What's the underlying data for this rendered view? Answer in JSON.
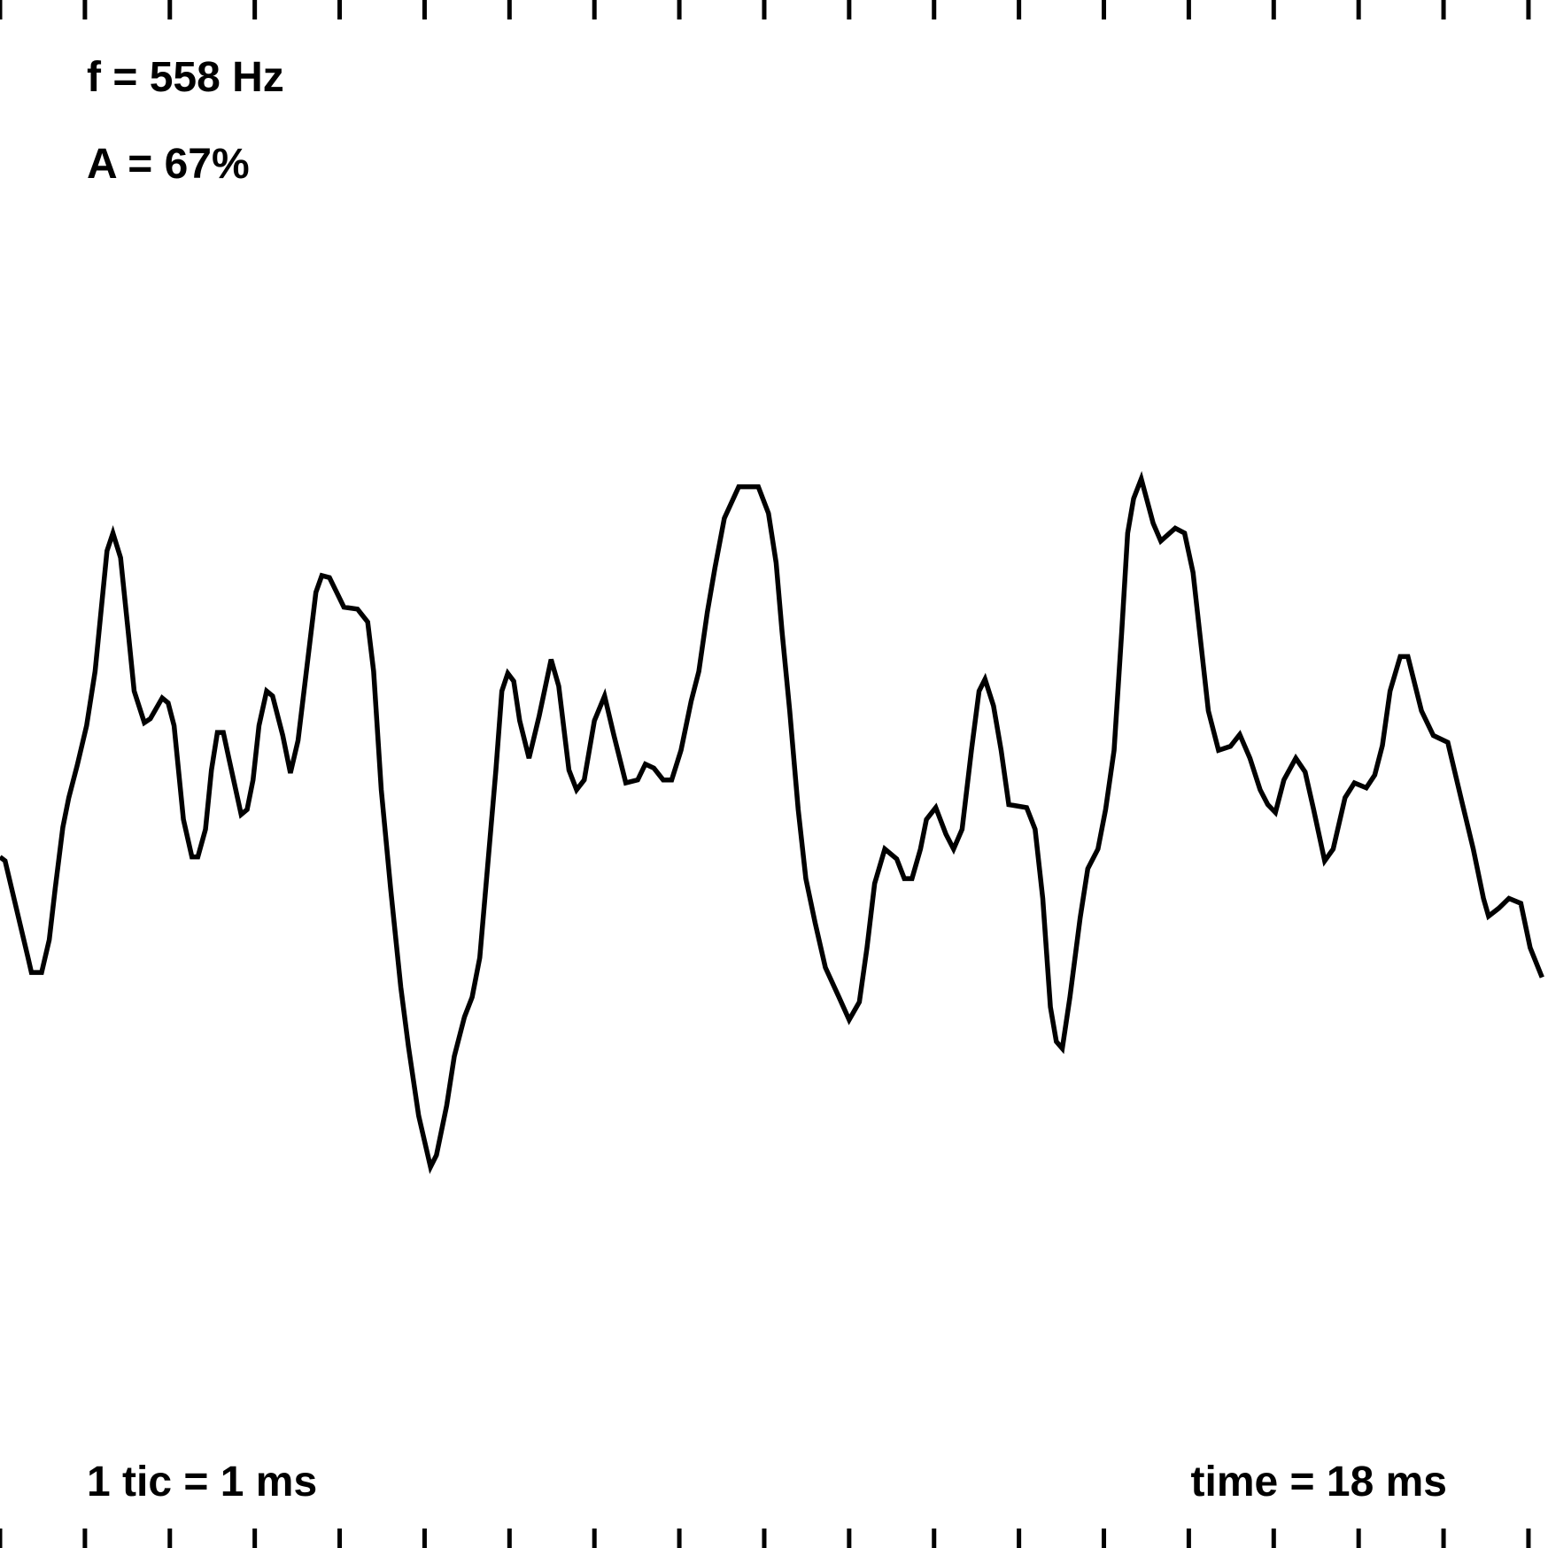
{
  "chart_data": {
    "type": "line",
    "annotations": [
      "f = 558 Hz",
      "A = 67%",
      "1 tic = 1 ms",
      "time = 18 ms"
    ],
    "color": "#000000",
    "xlim": [
      0,
      18.23
    ],
    "ylim": [
      -784,
      784
    ],
    "xticks": [
      0,
      1,
      2,
      3,
      4,
      5,
      6,
      7,
      8,
      9,
      10,
      11,
      12,
      13,
      14,
      15,
      16,
      17,
      18
    ],
    "x": [
      0,
      0.06,
      0.33,
      0.37,
      0.49,
      0.58,
      0.65,
      0.74,
      0.81,
      0.91,
      1.02,
      1.12,
      1.26,
      1.33,
      1.42,
      1.51,
      1.58,
      1.7,
      1.77,
      1.91,
      1.98,
      2.05,
      2.16,
      2.26,
      2.33,
      2.42,
      2.49,
      2.56,
      2.63,
      2.7,
      2.84,
      2.91,
      2.98,
      3.05,
      3.14,
      3.21,
      3.33,
      3.42,
      3.51,
      3.65,
      3.72,
      3.79,
      3.88,
      4.05,
      4.21,
      4.33,
      4.4,
      4.49,
      4.6,
      4.72,
      4.81,
      4.93,
      5.07,
      5.14,
      5.26,
      5.35,
      5.47,
      5.56,
      5.65,
      5.74,
      5.84,
      5.91,
      5.98,
      6.05,
      6.12,
      6.23,
      6.35,
      6.49,
      6.58,
      6.7,
      6.79,
      6.88,
      7.0,
      7.12,
      7.23,
      7.37,
      7.51,
      7.6,
      7.7,
      7.81,
      7.91,
      8.02,
      8.14,
      8.23,
      8.33,
      8.42,
      8.53,
      8.7,
      8.93,
      9.05,
      9.14,
      9.21,
      9.3,
      9.4,
      9.49,
      9.6,
      9.72,
      9.88,
      10.0,
      10.12,
      10.21,
      10.3,
      10.42,
      10.56,
      10.65,
      10.74,
      10.84,
      10.91,
      11.02,
      11.14,
      11.23,
      11.33,
      11.44,
      11.53,
      11.6,
      11.7,
      11.79,
      11.88,
      12.09,
      12.19,
      12.28,
      12.37,
      12.44,
      12.51,
      12.6,
      12.72,
      12.81,
      12.93,
      13.02,
      13.12,
      13.21,
      13.28,
      13.35,
      13.44,
      13.58,
      13.67,
      13.84,
      13.95,
      14.05,
      14.14,
      14.23,
      14.35,
      14.49,
      14.6,
      14.72,
      14.84,
      14.93,
      15.02,
      15.12,
      15.26,
      15.37,
      15.47,
      15.6,
      15.7,
      15.84,
      15.95,
      16.09,
      16.19,
      16.28,
      16.37,
      16.49,
      16.58,
      16.74,
      16.88,
      17.05,
      17.21,
      17.35,
      17.47,
      17.53,
      17.65,
      17.77,
      17.91,
      18.02,
      18.16
    ],
    "values": [
      -84,
      -88,
      -186,
      -201,
      -201,
      -168,
      -116,
      -54,
      -24,
      9,
      49,
      104,
      226,
      244,
      219,
      144,
      84,
      52,
      56,
      77,
      72,
      49,
      -46,
      -84,
      -84,
      -56,
      4,
      42,
      42,
      14,
      -41,
      -36,
      -6,
      49,
      84,
      79,
      39,
      1,
      34,
      134,
      184,
      201,
      199,
      169,
      167,
      154,
      104,
      -16,
      -116,
      -216,
      -276,
      -346,
      -398,
      -386,
      -336,
      -286,
      -246,
      -226,
      -186,
      -96,
      4,
      84,
      102,
      94,
      54,
      16,
      59,
      116,
      89,
      4,
      -16,
      -6,
      54,
      79,
      39,
      -9,
      -6,
      10,
      6,
      -6,
      -6,
      24,
      74,
      104,
      164,
      209,
      259,
      291,
      291,
      264,
      214,
      144,
      64,
      -36,
      -106,
      -151,
      -196,
      -226,
      -249,
      -231,
      -176,
      -111,
      -76,
      -86,
      -106,
      -106,
      -76,
      -46,
      -34,
      -61,
      -76,
      -56,
      24,
      84,
      96,
      69,
      24,
      -31,
      -34,
      -56,
      -126,
      -236,
      -271,
      -278,
      -226,
      -146,
      -96,
      -76,
      -36,
      24,
      144,
      244,
      279,
      299,
      254,
      236,
      249,
      244,
      204,
      134,
      64,
      24,
      28,
      40,
      16,
      -16,
      -31,
      -39,
      -6,
      16,
      2,
      -36,
      -88,
      -76,
      -24,
      -9,
      -14,
      -1,
      29,
      84,
      119,
      119,
      64,
      39,
      32,
      -26,
      -76,
      -126,
      -144,
      -136,
      -126,
      -131,
      -176,
      -206
    ]
  }
}
